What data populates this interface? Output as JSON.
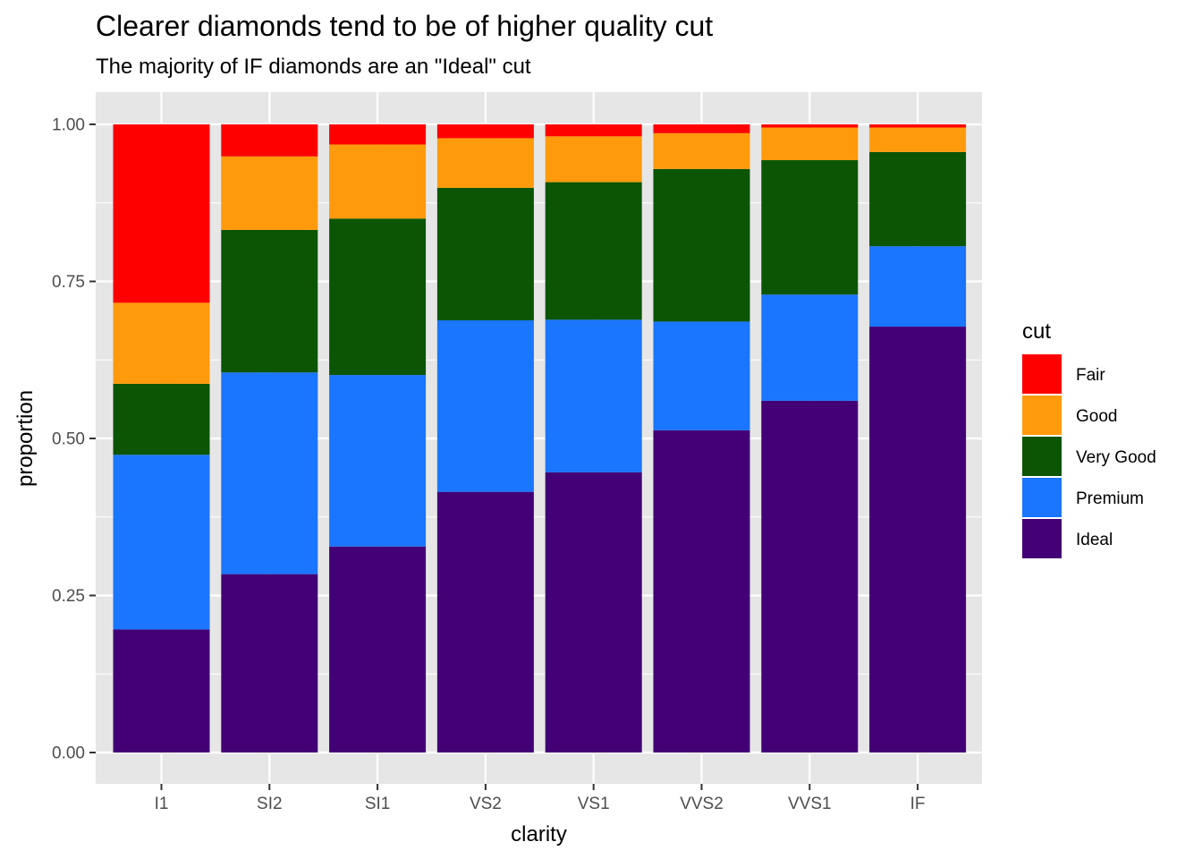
{
  "chart_data": {
    "type": "bar",
    "stacked": "fill",
    "title": "Clearer diamonds tend to be of higher quality cut",
    "subtitle": "The majority of IF diamonds are an \"Ideal\" cut",
    "xlabel": "clarity",
    "ylabel": "proportion",
    "ylim": [
      0,
      1
    ],
    "yticks": [
      "0.00",
      "0.25",
      "0.50",
      "0.75",
      "1.00"
    ],
    "grid": true,
    "legend": {
      "title": "cut",
      "position": "right"
    },
    "categories": [
      "I1",
      "SI2",
      "SI1",
      "VS2",
      "VS1",
      "VVS2",
      "VVS1",
      "IF"
    ],
    "series": [
      {
        "name": "Fair",
        "color": "#ff0000",
        "values": [
          0.284,
          0.051,
          0.032,
          0.022,
          0.019,
          0.014,
          0.005,
          0.005
        ]
      },
      {
        "name": "Good",
        "color": "#ff9a0c",
        "values": [
          0.129,
          0.117,
          0.118,
          0.079,
          0.073,
          0.057,
          0.052,
          0.039
        ]
      },
      {
        "name": "Very Good",
        "color": "#0b5505",
        "values": [
          0.113,
          0.227,
          0.249,
          0.211,
          0.219,
          0.243,
          0.214,
          0.15
        ]
      },
      {
        "name": "Premium",
        "color": "#1a75ff",
        "values": [
          0.278,
          0.321,
          0.273,
          0.273,
          0.243,
          0.173,
          0.169,
          0.128
        ]
      },
      {
        "name": "Ideal",
        "color": "#430076",
        "values": [
          0.196,
          0.284,
          0.328,
          0.415,
          0.446,
          0.513,
          0.56,
          0.678
        ]
      }
    ]
  }
}
